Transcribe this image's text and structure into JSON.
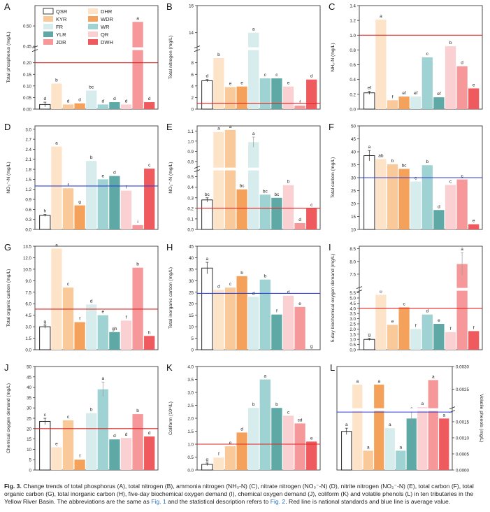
{
  "caption": {
    "label": "Fig. 3.",
    "part1": " Change trends of total phosphorus (A), total nitrogen (B), ammonia nitrogen (NH₃-N) (C), nitrate nitrogen (NO₃⁻-N) (D), nitrite nitrogen (NO₂⁻-N) (E), total carbon (F), total organic carbon (G), total inorganic carbon (H), five-day biochemical oxygen demand (I), chemical oxygen demand (J), coliform (K) and volatile phenols (L) in ten tributaries in the Yellow River Basin. The abbreviations are the same as ",
    "link1": "Fig. 1",
    "part2": " and the statistical description refers to ",
    "link2": "Fig. 2",
    "part3": ". Red line is national standards and blue line is average value."
  },
  "legend": [
    {
      "name": "QSR",
      "color": "#ffffff"
    },
    {
      "name": "DHR",
      "color": "#fde3c8"
    },
    {
      "name": "KYR",
      "color": "#f9c99a"
    },
    {
      "name": "WDR",
      "color": "#f4a25b"
    },
    {
      "name": "FR",
      "color": "#d7ecec"
    },
    {
      "name": "WR",
      "color": "#9fd2d2"
    },
    {
      "name": "YLR",
      "color": "#5ea9a6"
    },
    {
      "name": "QR",
      "color": "#fbd0d2"
    },
    {
      "name": "JDR",
      "color": "#f6979a"
    },
    {
      "name": "DWH",
      "color": "#ef5a5f"
    }
  ],
  "chart_data": [
    {
      "panel": "A",
      "type": "bar",
      "ylabel": "Total phosphorus (mg/L)",
      "categories": [
        "QSR",
        "DHR",
        "KYR",
        "WDR",
        "FR",
        "WR",
        "YLR",
        "QR",
        "JDR",
        "DWH"
      ],
      "values": [
        0.02,
        0.11,
        0.02,
        0.025,
        0.08,
        0.02,
        0.03,
        0.02,
        0.51,
        0.03
      ],
      "errors": [
        0.01,
        0,
        0,
        0,
        0,
        0,
        0,
        0,
        0,
        0
      ],
      "letters": [
        "d",
        "b",
        "d",
        "d",
        "bc",
        "d",
        "d",
        "d",
        "a",
        "d"
      ],
      "axis": {
        "type": "broken",
        "lower": [
          0,
          0.25
        ],
        "upper": [
          0.45,
          0.55
        ],
        "lower_ticks": [
          0,
          0.05,
          0.1,
          0.15,
          0.2
        ],
        "upper_ticks": [
          0.45,
          0.5
        ],
        "lower_tick_labels": [
          "0.00",
          "0.05",
          "0.10",
          "0.15",
          "0.20"
        ],
        "upper_tick_labels": [
          "0.45",
          "0.50"
        ]
      },
      "red_line": 0.2,
      "blue_line": null
    },
    {
      "panel": "B",
      "type": "bar",
      "ylabel": "Total nitrogen (mg/L)",
      "categories": [
        "QSR",
        "DHR",
        "KYR",
        "WDR",
        "FR",
        "WR",
        "YLR",
        "QR",
        "JDR",
        "DWH"
      ],
      "values": [
        4.9,
        8.8,
        3.8,
        3.9,
        14.0,
        5.3,
        5.3,
        3.9,
        0.6,
        5.1
      ],
      "errors": [
        0.2,
        0,
        0,
        0,
        0,
        0,
        0,
        0,
        0,
        0
      ],
      "letters": [
        "d",
        "b",
        "e",
        "e",
        "a",
        "c",
        "c",
        "e",
        "f",
        "d"
      ],
      "axis": {
        "type": "broken",
        "lower": [
          0,
          10
        ],
        "upper": [
          13,
          16
        ],
        "lower_ticks": [
          0,
          2,
          4,
          6,
          8
        ],
        "upper_ticks": [
          14,
          16
        ],
        "lower_tick_labels": [
          "0",
          "2",
          "4",
          "6",
          "8"
        ],
        "upper_tick_labels": [
          "14",
          "16"
        ]
      },
      "red_line": 1.0,
      "blue_line": null
    },
    {
      "panel": "C",
      "type": "bar",
      "ylabel": "NH₃-N (mg/L)",
      "categories": [
        "QSR",
        "DHR",
        "KYR",
        "WDR",
        "FR",
        "WR",
        "YLR",
        "QR",
        "JDR",
        "DWH"
      ],
      "values": [
        0.22,
        1.21,
        0.12,
        0.17,
        0.17,
        0.7,
        0.16,
        0.85,
        0.58,
        0.28
      ],
      "errors": [
        0.02,
        0,
        0,
        0,
        0,
        0,
        0,
        0,
        0,
        0
      ],
      "letters": [
        "ef",
        "a",
        "f",
        "ef",
        "ef",
        "c",
        "ef",
        "b",
        "d",
        "e"
      ],
      "axis": {
        "type": "linear",
        "range": [
          0,
          1.4
        ],
        "ticks": [
          0,
          0.2,
          0.4,
          0.6,
          0.8,
          1.0,
          1.2,
          1.4
        ],
        "tick_labels": [
          "0.0",
          "0.2",
          "0.4",
          "0.6",
          "0.8",
          "1.0",
          "1.2",
          "1.4"
        ]
      },
      "red_line": 1.0,
      "blue_line": null
    },
    {
      "panel": "D",
      "type": "bar",
      "ylabel": "NO₃⁻-N (mg/L)",
      "categories": [
        "QSR",
        "DHR",
        "KYR",
        "WDR",
        "FR",
        "WR",
        "YLR",
        "QR",
        "JDR",
        "DWH"
      ],
      "values": [
        0.42,
        2.48,
        1.23,
        0.72,
        2.05,
        1.5,
        1.6,
        1.16,
        0.13,
        1.82
      ],
      "errors": [
        0.03,
        0,
        0,
        0,
        0,
        0,
        0,
        0,
        0,
        0
      ],
      "letters": [
        "h",
        "a",
        "f",
        "g",
        "b",
        "e",
        "d",
        "f",
        "i",
        "c"
      ],
      "axis": {
        "type": "linear",
        "range": [
          0,
          3.1
        ],
        "ticks": [
          0,
          0.3,
          0.6,
          0.9,
          1.2,
          1.5,
          1.8,
          2.1,
          2.4,
          2.7,
          3.0
        ],
        "tick_labels": [
          "0.0",
          "0.3",
          "0.6",
          "0.9",
          "1.2",
          "1.5",
          "1.8",
          "2.1",
          "2.4",
          "2.7",
          "3.0"
        ]
      },
      "red_line": null,
      "blue_line": 1.3
    },
    {
      "panel": "E",
      "type": "bar",
      "ylabel": "NO₂⁻-N (mg/L)",
      "categories": [
        "QSR",
        "DHR",
        "KYR",
        "WDR",
        "FR",
        "WR",
        "YLR",
        "QR",
        "JDR",
        "DWH"
      ],
      "values": [
        0.28,
        1.09,
        1.11,
        0.38,
        0.99,
        0.33,
        0.3,
        0.42,
        0.06,
        0.2
      ],
      "errors": [
        0.02,
        0,
        0,
        0,
        0.05,
        0,
        0,
        0,
        0,
        0
      ],
      "letters": [
        "bc",
        "a",
        "a",
        "bc",
        "a",
        "bc",
        "bc",
        "b",
        "d",
        "c"
      ],
      "axis": {
        "type": "broken",
        "lower": [
          0,
          0.55
        ],
        "upper": [
          0.75,
          1.15
        ],
        "lower_ticks": [
          0,
          0.1,
          0.2,
          0.3,
          0.4,
          0.5
        ],
        "upper_ticks": [
          0.8,
          0.9,
          1.0,
          1.1
        ],
        "lower_tick_labels": [
          "0.0",
          "0.1",
          "0.2",
          "0.3",
          "0.4",
          "0.5"
        ],
        "upper_tick_labels": [
          "0.8",
          "0.9",
          "1.0",
          "1.1"
        ]
      },
      "red_line": 0.2,
      "blue_line": null
    },
    {
      "panel": "F",
      "type": "bar",
      "ylabel": "Total carbon (mg/L)",
      "categories": [
        "QSR",
        "DHR",
        "KYR",
        "WDR",
        "FR",
        "WR",
        "YLR",
        "QR",
        "JDR",
        "DWH"
      ],
      "values": [
        38.5,
        37.2,
        35.2,
        33.4,
        28.5,
        34.8,
        17.5,
        27.2,
        29.3,
        12.0
      ],
      "errors": [
        2.0,
        0,
        0,
        0,
        0,
        0,
        0,
        0,
        0,
        0
      ],
      "letters": [
        "a",
        "ab",
        "b",
        "bc",
        "c",
        "b",
        "d",
        "c",
        "c",
        "e"
      ],
      "axis": {
        "type": "linear",
        "range": [
          10,
          50
        ],
        "ticks": [
          10,
          15,
          20,
          25,
          30,
          35,
          40,
          45,
          50
        ],
        "tick_labels": [
          "10",
          "15",
          "20",
          "25",
          "30",
          "35",
          "40",
          "45",
          "50"
        ]
      },
      "red_line": null,
      "blue_line": 30
    },
    {
      "panel": "G",
      "type": "bar",
      "ylabel": "Total organic carbon (mg/L)",
      "categories": [
        "QSR",
        "DHR",
        "KYR",
        "WDR",
        "FR",
        "WR",
        "YLR",
        "QR",
        "JDR",
        "DWH"
      ],
      "values": [
        3.0,
        13.2,
        8.1,
        3.6,
        5.9,
        4.5,
        2.3,
        3.8,
        10.7,
        1.8
      ],
      "errors": [
        0.2,
        0,
        0,
        0,
        0,
        0,
        0,
        0,
        0,
        0
      ],
      "letters": [
        "g",
        "a",
        "c",
        "f",
        "d",
        "e",
        "gh",
        "f",
        "b",
        "h"
      ],
      "axis": {
        "type": "linear",
        "range": [
          0,
          13.5
        ],
        "ticks": [
          0,
          1.5,
          3.0,
          4.5,
          6.0,
          7.5,
          9.0,
          10.5,
          12.0,
          13.5
        ],
        "tick_labels": [
          "0.0",
          "1.5",
          "3.0",
          "4.5",
          "6.0",
          "7.5",
          "9.0",
          "10.5",
          "12.0",
          "13.5"
        ]
      },
      "red_line": 5.3,
      "blue_line": null
    },
    {
      "panel": "H",
      "type": "bar",
      "ylabel": "Total inorganic carbon (mg/L)",
      "categories": [
        "QSR",
        "DHR",
        "KYR",
        "WDR",
        "FR",
        "WR",
        "YLR",
        "QR",
        "JDR",
        "DWH"
      ],
      "values": [
        35.5,
        26.0,
        27.0,
        32.0,
        23.0,
        30.5,
        15.3,
        23.5,
        18.6,
        0.0
      ],
      "errors": [
        2.5,
        0,
        0,
        0,
        0,
        0,
        0,
        0,
        0,
        0
      ],
      "letters": [
        "a",
        "d",
        "c",
        "b",
        "d",
        "b",
        "f",
        "d",
        "e",
        "g"
      ],
      "axis": {
        "type": "linear",
        "range": [
          0,
          45
        ],
        "ticks": [
          0,
          5,
          10,
          15,
          20,
          25,
          30,
          35,
          40,
          45
        ],
        "tick_labels": [
          "0",
          "5",
          "10",
          "15",
          "20",
          "25",
          "30",
          "35",
          "40",
          "45"
        ]
      },
      "red_line": null,
      "blue_line": 24.5
    },
    {
      "panel": "I",
      "type": "bar",
      "ylabel": "5-day biochemical oxygen demand (mg/L)",
      "categories": [
        "QSR",
        "DHR",
        "KYR",
        "WDR",
        "FR",
        "WR",
        "YLR",
        "QR",
        "JDR",
        "DWH"
      ],
      "values": [
        1.0,
        5.3,
        2.4,
        4.1,
        2.0,
        3.4,
        2.5,
        1.7,
        7.9,
        1.8
      ],
      "errors": [
        0.1,
        0,
        0,
        0,
        0,
        0,
        0,
        0,
        0.45,
        0
      ],
      "letters": [
        "g",
        "b",
        "e",
        "c",
        "f",
        "d",
        "e",
        "f",
        "a",
        "f"
      ],
      "axis": {
        "type": "broken",
        "lower": [
          0,
          5.6
        ],
        "upper": [
          7.0,
          8.6
        ],
        "lower_ticks": [
          0,
          0.5,
          1.0,
          1.5,
          2.0,
          2.5,
          3.0,
          3.5,
          4.0,
          4.5,
          5.0,
          5.5
        ],
        "upper_ticks": [
          7.5,
          8.0,
          8.5
        ],
        "lower_tick_labels": [
          "0.0",
          "0.5",
          "1.0",
          "1.5",
          "2.0",
          "2.5",
          "3.0",
          "3.5",
          "4.0",
          "4.5",
          "5.0",
          "5.5"
        ],
        "upper_tick_labels": [
          "7.5",
          "8.0",
          "8.5"
        ]
      },
      "red_line": 4.0,
      "blue_line": null
    },
    {
      "panel": "J",
      "type": "bar",
      "ylabel": "Chemical oxygen demand (mg/L)",
      "categories": [
        "QSR",
        "DHR",
        "KYR",
        "WDR",
        "FR",
        "WR",
        "YLR",
        "QR",
        "JDR",
        "DWH"
      ],
      "values": [
        23.5,
        11.0,
        24.0,
        5.0,
        27.5,
        39.0,
        14.8,
        15.5,
        27.0,
        16.2
      ],
      "errors": [
        1.5,
        0,
        0,
        0,
        0,
        3.5,
        0,
        0,
        0,
        0
      ],
      "letters": [
        "c",
        "e",
        "c",
        "f",
        "b",
        "a",
        "d",
        "d",
        "b",
        "d"
      ],
      "axis": {
        "type": "linear",
        "range": [
          0,
          50
        ],
        "ticks": [
          0,
          5,
          10,
          15,
          20,
          25,
          30,
          35,
          40,
          45,
          50
        ],
        "tick_labels": [
          "0",
          "5",
          "10",
          "15",
          "20",
          "25",
          "30",
          "35",
          "40",
          "45",
          "50"
        ]
      },
      "red_line": 20,
      "blue_line": null
    },
    {
      "panel": "K",
      "type": "bar",
      "ylabel": "Coliform (10⁴/L)",
      "categories": [
        "QSR",
        "DHR",
        "KYR",
        "WDR",
        "FR",
        "WR",
        "YLR",
        "QR",
        "JDR",
        "DWH"
      ],
      "values": [
        0.22,
        0.48,
        0.92,
        1.45,
        2.4,
        3.5,
        2.4,
        2.1,
        1.8,
        1.1
      ],
      "errors": [
        0.05,
        0,
        0,
        0,
        0,
        0,
        0,
        0,
        0,
        0
      ],
      "letters": [
        "g",
        "f",
        "e",
        "d",
        "b",
        "a",
        "b",
        "c",
        "cd",
        "e"
      ],
      "axis": {
        "type": "linear",
        "range": [
          0,
          4.0
        ],
        "ticks": [
          0,
          0.5,
          1.0,
          1.5,
          2.0,
          2.5,
          3.0,
          3.5,
          4.0
        ],
        "tick_labels": [
          "0.0",
          "0.5",
          "1.0",
          "1.5",
          "2.0",
          "2.5",
          "3.0",
          "3.5",
          "4.0"
        ]
      },
      "red_line": 1.0,
      "blue_line": null
    },
    {
      "panel": "L",
      "type": "bar",
      "ylabel": "Volatile phenols (mg/L)",
      "categories": [
        "QSR",
        "DHR",
        "KYR",
        "WDR",
        "FR",
        "WR",
        "YLR",
        "QR",
        "JDR",
        "DWH"
      ],
      "values": [
        0.0012,
        0.0026,
        0.0006,
        0.0026,
        0.0013,
        0.0006,
        0.0016,
        0.0021,
        0.0027,
        0.0016
      ],
      "errors": [
        0.0001,
        0,
        0,
        0,
        0,
        0,
        0.0002,
        0,
        0,
        0
      ],
      "letters": [
        "a",
        "a",
        "a",
        "a",
        "a",
        "a",
        "a",
        "a",
        "a",
        "a"
      ],
      "axis": {
        "type": "broken",
        "side": "right",
        "lower": [
          0,
          0.0018
        ],
        "upper": [
          0.0021,
          0.003
        ],
        "lower_ticks": [
          0,
          0.0005,
          0.001,
          0.0015
        ],
        "upper_ticks": [
          0.0025,
          0.003
        ],
        "lower_tick_labels": [
          "0.0000",
          "0.0005",
          "0.0010",
          "0.0015"
        ],
        "upper_tick_labels": [
          "0.0025",
          "0.0030"
        ]
      },
      "red_line": null,
      "blue_line": 0.0019
    }
  ]
}
